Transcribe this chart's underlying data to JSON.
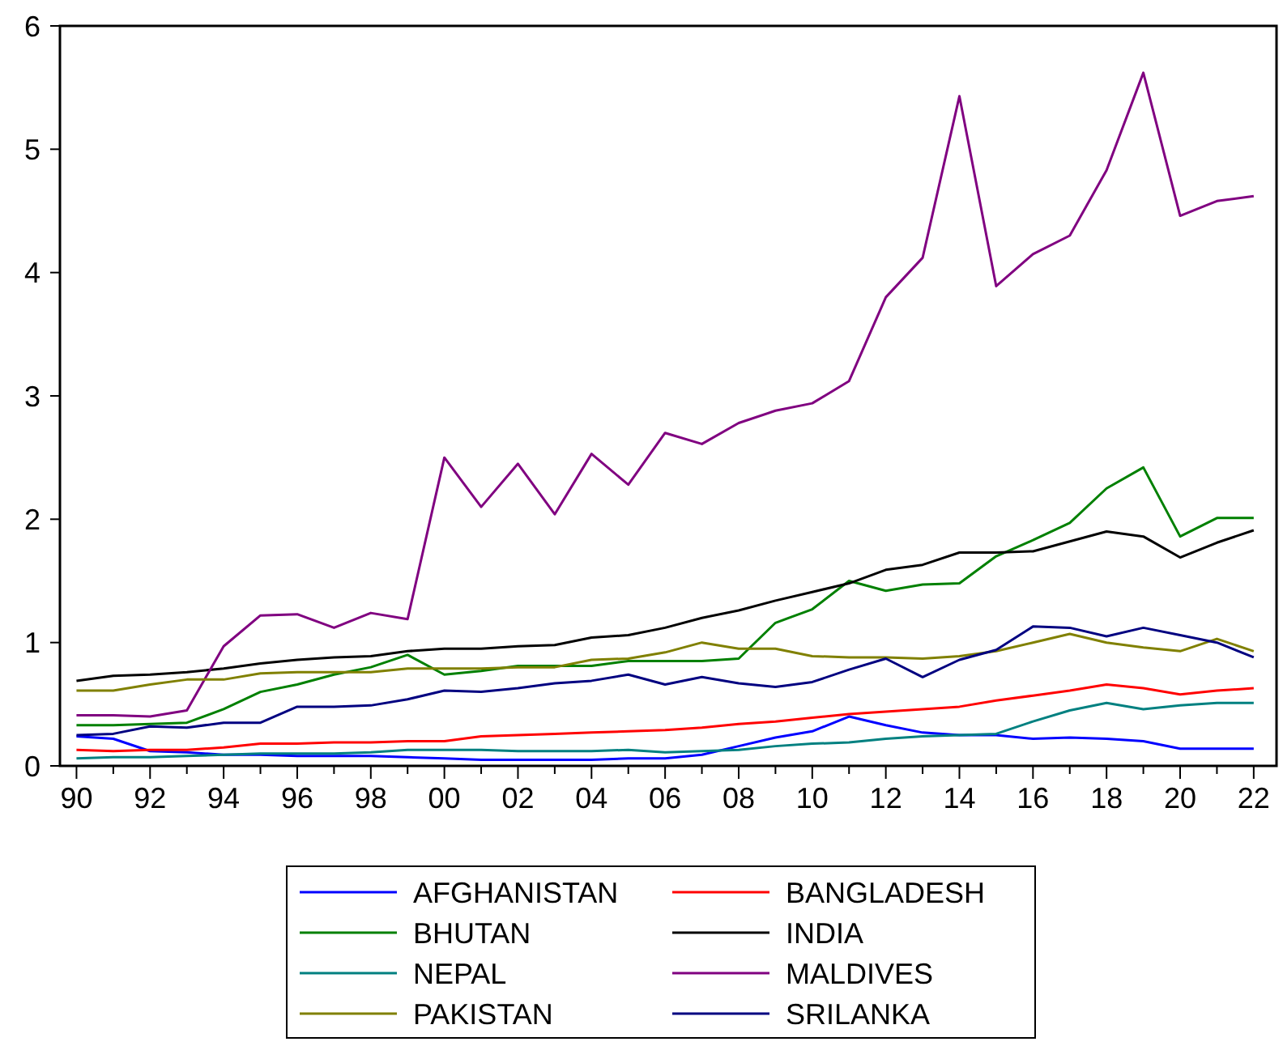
{
  "chart_data": {
    "type": "line",
    "x": [
      1990,
      1991,
      1992,
      1993,
      1994,
      1995,
      1996,
      1997,
      1998,
      1999,
      2000,
      2001,
      2002,
      2003,
      2004,
      2005,
      2006,
      2007,
      2008,
      2009,
      2010,
      2011,
      2012,
      2013,
      2014,
      2015,
      2016,
      2017,
      2018,
      2019,
      2020,
      2021,
      2022
    ],
    "xlim": [
      1989.55,
      2022.62
    ],
    "xticks": [
      {
        "value": 1990,
        "label": "90"
      },
      {
        "value": 1991,
        "label": null
      },
      {
        "value": 1992,
        "label": "92"
      },
      {
        "value": 1993,
        "label": null
      },
      {
        "value": 1994,
        "label": "94"
      },
      {
        "value": 1995,
        "label": null
      },
      {
        "value": 1996,
        "label": "96"
      },
      {
        "value": 1997,
        "label": null
      },
      {
        "value": 1998,
        "label": "98"
      },
      {
        "value": 1999,
        "label": null
      },
      {
        "value": 2000,
        "label": "00"
      },
      {
        "value": 2001,
        "label": null
      },
      {
        "value": 2002,
        "label": "02"
      },
      {
        "value": 2003,
        "label": null
      },
      {
        "value": 2004,
        "label": "04"
      },
      {
        "value": 2005,
        "label": null
      },
      {
        "value": 2006,
        "label": "06"
      },
      {
        "value": 2007,
        "label": null
      },
      {
        "value": 2008,
        "label": "08"
      },
      {
        "value": 2009,
        "label": null
      },
      {
        "value": 2010,
        "label": "10"
      },
      {
        "value": 2011,
        "label": null
      },
      {
        "value": 2012,
        "label": "12"
      },
      {
        "value": 2013,
        "label": null
      },
      {
        "value": 2014,
        "label": "14"
      },
      {
        "value": 2015,
        "label": null
      },
      {
        "value": 2016,
        "label": "16"
      },
      {
        "value": 2017,
        "label": null
      },
      {
        "value": 2018,
        "label": "18"
      },
      {
        "value": 2019,
        "label": null
      },
      {
        "value": 2020,
        "label": "20"
      },
      {
        "value": 2021,
        "label": null
      },
      {
        "value": 2022,
        "label": "22"
      }
    ],
    "ylim": [
      0,
      6
    ],
    "yticks": [
      0,
      1,
      2,
      3,
      4,
      5,
      6
    ],
    "grid": false,
    "legend": "bottom",
    "marker": "none",
    "line_style": "solid",
    "series": [
      {
        "name": "AFGHANISTAN",
        "color": "#0000ff",
        "values": [
          0.24,
          0.22,
          0.12,
          0.11,
          0.09,
          0.09,
          0.08,
          0.08,
          0.08,
          0.07,
          0.06,
          0.05,
          0.05,
          0.05,
          0.05,
          0.06,
          0.06,
          0.09,
          0.16,
          0.23,
          0.28,
          0.4,
          0.33,
          0.27,
          0.25,
          0.25,
          0.22,
          0.23,
          0.22,
          0.2,
          0.14,
          0.14,
          0.14
        ]
      },
      {
        "name": "BANGLADESH",
        "color": "#ff0000",
        "values": [
          0.13,
          0.12,
          0.13,
          0.13,
          0.15,
          0.18,
          0.18,
          0.19,
          0.19,
          0.2,
          0.2,
          0.24,
          0.25,
          0.26,
          0.27,
          0.28,
          0.29,
          0.31,
          0.34,
          0.36,
          0.39,
          0.42,
          0.44,
          0.46,
          0.48,
          0.53,
          0.57,
          0.61,
          0.66,
          0.63,
          0.58,
          0.61,
          0.63
        ]
      },
      {
        "name": "BHUTAN",
        "color": "#008000",
        "values": [
          0.33,
          0.33,
          0.34,
          0.35,
          0.46,
          0.6,
          0.66,
          0.74,
          0.8,
          0.9,
          0.74,
          0.77,
          0.81,
          0.81,
          0.81,
          0.85,
          0.85,
          0.85,
          0.87,
          1.16,
          1.27,
          1.5,
          1.42,
          1.47,
          1.48,
          1.7,
          1.83,
          1.97,
          2.25,
          2.42,
          1.86,
          2.01,
          2.01
        ]
      },
      {
        "name": "INDIA",
        "color": "#000000",
        "values": [
          0.69,
          0.73,
          0.74,
          0.76,
          0.79,
          0.83,
          0.86,
          0.88,
          0.89,
          0.93,
          0.95,
          0.95,
          0.97,
          0.98,
          1.04,
          1.06,
          1.12,
          1.2,
          1.26,
          1.34,
          1.41,
          1.48,
          1.59,
          1.63,
          1.73,
          1.73,
          1.74,
          1.82,
          1.9,
          1.86,
          1.69,
          1.81,
          1.91
        ]
      },
      {
        "name": "NEPAL",
        "color": "#008080",
        "values": [
          0.06,
          0.07,
          0.07,
          0.08,
          0.09,
          0.1,
          0.1,
          0.1,
          0.11,
          0.13,
          0.13,
          0.13,
          0.12,
          0.12,
          0.12,
          0.13,
          0.11,
          0.12,
          0.13,
          0.16,
          0.18,
          0.19,
          0.22,
          0.24,
          0.25,
          0.26,
          0.36,
          0.45,
          0.51,
          0.46,
          0.49,
          0.51,
          0.51
        ]
      },
      {
        "name": "MALDIVES",
        "color": "#800080",
        "values": [
          0.41,
          0.41,
          0.4,
          0.45,
          0.97,
          1.22,
          1.23,
          1.12,
          1.24,
          1.19,
          2.5,
          2.1,
          2.45,
          2.04,
          2.53,
          2.28,
          2.7,
          2.61,
          2.78,
          2.88,
          2.94,
          3.12,
          3.8,
          4.12,
          5.43,
          3.89,
          4.15,
          4.3,
          4.83,
          5.62,
          4.46,
          4.58,
          4.62
        ]
      },
      {
        "name": "PAKISTAN",
        "color": "#808000",
        "values": [
          0.61,
          0.61,
          0.66,
          0.7,
          0.7,
          0.75,
          0.76,
          0.76,
          0.76,
          0.79,
          0.79,
          0.79,
          0.8,
          0.8,
          0.86,
          0.87,
          0.92,
          1.0,
          0.95,
          0.95,
          0.89,
          0.88,
          0.88,
          0.87,
          0.89,
          0.93,
          1.0,
          1.07,
          1.0,
          0.96,
          0.93,
          1.03,
          0.93
        ]
      },
      {
        "name": "SRILANKA",
        "color": "#000080",
        "values": [
          0.25,
          0.26,
          0.32,
          0.31,
          0.35,
          0.35,
          0.48,
          0.48,
          0.49,
          0.54,
          0.61,
          0.6,
          0.63,
          0.67,
          0.69,
          0.74,
          0.66,
          0.72,
          0.67,
          0.64,
          0.68,
          0.78,
          0.87,
          0.72,
          0.86,
          0.94,
          1.13,
          1.12,
          1.05,
          1.12,
          1.06,
          1.0,
          0.88
        ]
      }
    ]
  }
}
